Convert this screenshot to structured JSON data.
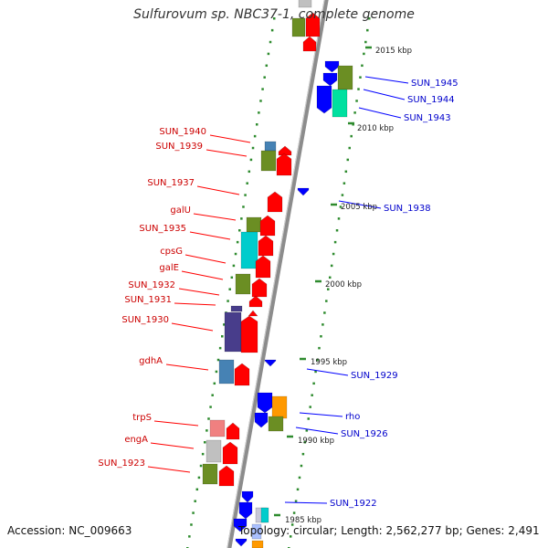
{
  "title": "Sulfurovum sp. NBC37-1, complete genome",
  "footer": {
    "accession": "Accession: NC_009663",
    "topology": "Topology: circular; Length: 2,562,277 bp; Genes: 2,491"
  },
  "colors": {
    "backbone": "#8c8c8c",
    "tick": "#2e8b2e",
    "gene_red": "#ff0000",
    "gene_blue": "#0000ff",
    "label_red": "#cc0000",
    "label_blue": "#0000cc",
    "olive": "#6b8e23",
    "cyan": "#00cccc",
    "aqua_green": "#00e0a0",
    "steel_blue": "#4682b4",
    "purple": "#483d8b",
    "orange": "#ff9900",
    "pink": "#f08080",
    "grey": "#c0c0c0"
  },
  "scale_labels": [
    "2015 kbp",
    "2010 kbp",
    "2005 kbp",
    "2000 kbp",
    "1995 kbp",
    "1990 kbp",
    "1985 kbp"
  ],
  "left_gene_labels": [
    "SUN_1940",
    "SUN_1939",
    "SUN_1937",
    "galU",
    "SUN_1935",
    "cpsG",
    "galE",
    "SUN_1932",
    "SUN_1931",
    "SUN_1930",
    "gdhA",
    "trpS",
    "engA",
    "SUN_1923"
  ],
  "right_gene_labels": [
    "SUN_1945",
    "SUN_1944",
    "SUN_1943",
    "SUN_1938",
    "SUN_1929",
    "rho",
    "SUN_1926",
    "SUN_1922"
  ]
}
